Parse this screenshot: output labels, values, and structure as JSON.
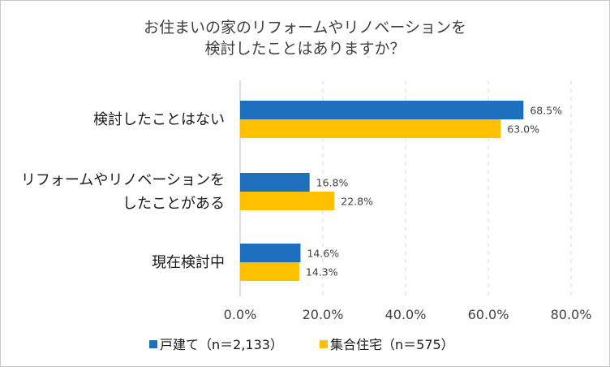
{
  "chart_data": {
    "type": "bar",
    "orientation": "horizontal",
    "title_lines": [
      "お住まいの家のリフォームやリノベーションを",
      "検討したことはありますか？"
    ],
    "categories": [
      [
        "検討したことはない"
      ],
      [
        "リフォームやリノベーションを",
        "したことがある"
      ],
      [
        "現在検討中"
      ]
    ],
    "series": [
      {
        "name": "戸建て（n＝2,133）",
        "color": "#1f6fbf",
        "values": [
          68.5,
          16.8,
          14.6
        ],
        "labels": [
          "68.5%",
          "16.8%",
          "14.6%"
        ]
      },
      {
        "name": "集合住宅（n＝575）",
        "color": "#ffc000",
        "values": [
          63.0,
          22.8,
          14.3
        ],
        "labels": [
          "63.0%",
          "22.8%",
          "14.3%"
        ]
      }
    ],
    "xlim": [
      0,
      80
    ],
    "xticks": [
      0,
      20,
      40,
      60,
      80
    ],
    "xtick_labels": [
      "0.0%",
      "20.0%",
      "40.0%",
      "60.0%",
      "80.0%"
    ],
    "grid": "vertical dashed",
    "legend_position": "bottom"
  }
}
